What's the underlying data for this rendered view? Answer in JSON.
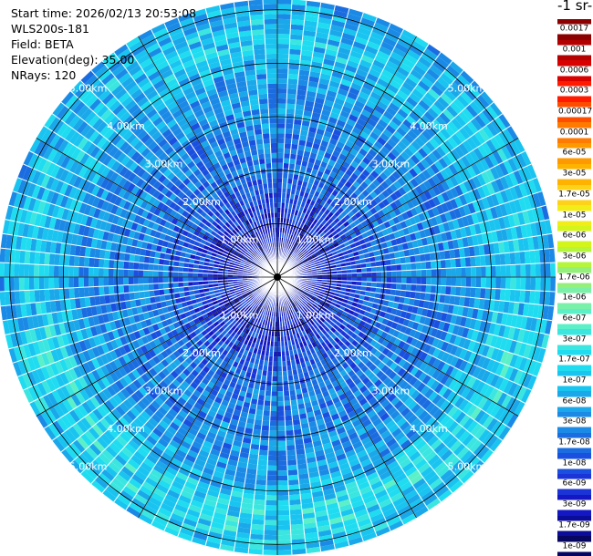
{
  "info": {
    "start_time": "Start time: 2026/02/13 20:53:08",
    "instrument": "WLS200s-181",
    "field": "Field: BETA",
    "elevation": "Elevation(deg): 35.00",
    "nrays": "NRays: 120"
  },
  "colorbar": {
    "unit_label": "-1 sr-",
    "labels": [
      "0.0017",
      "0.001",
      "0.0006",
      "0.0003",
      "0.00017",
      "0.0001",
      "6e-05",
      "3e-05",
      "1.7e-05",
      "1e-05",
      "6e-06",
      "3e-06",
      "1.7e-06",
      "1e-06",
      "6e-07",
      "3e-07",
      "1.7e-07",
      "1e-07",
      "6e-08",
      "3e-08",
      "1.7e-08",
      "1e-08",
      "6e-09",
      "3e-09",
      "1.7e-09",
      "1e-09"
    ],
    "colors": [
      "#8b0000",
      "#b30000",
      "#d90000",
      "#ff1a00",
      "#ff4d00",
      "#ff7a00",
      "#ff9900",
      "#ffb300",
      "#ffd21a",
      "#f2ec18",
      "#d4f51c",
      "#b5f53c",
      "#94f07a",
      "#7af0a8",
      "#5cf0c8",
      "#3ce6e0",
      "#1fdcf0",
      "#19c4f0",
      "#1aa8ea",
      "#1a8ae6",
      "#1a6ce0",
      "#1a50e0",
      "#1a34d8",
      "#1418c4",
      "#0c0c9a",
      "#060660"
    ]
  },
  "range_rings": {
    "labels": [
      "1.00km",
      "2.00km",
      "3.00km",
      "4.00km",
      "5.00km"
    ]
  },
  "chart_data": {
    "type": "heatmap",
    "projection": "polar-ppi",
    "field": "BETA",
    "elevation_deg": 35.0,
    "n_rays": 120,
    "range_rings_km": [
      1.0,
      2.0,
      3.0,
      4.0,
      5.0
    ],
    "max_range_km": 5.2,
    "colorbar_scale": "log",
    "profile": [
      {
        "range_km": 0.3,
        "beta": 4e-09
      },
      {
        "range_km": 1.0,
        "beta": 5e-09
      },
      {
        "range_km": 1.7,
        "beta": 1.5e-08
      },
      {
        "range_km": 2.3,
        "beta": 2.5e-08
      },
      {
        "range_km": 3.0,
        "beta": 3.5e-08
      },
      {
        "range_km": 3.7,
        "beta": 5e-08
      },
      {
        "range_km": 4.3,
        "beta": 1.2e-07
      },
      {
        "range_km": 4.8,
        "beta": 1e-07
      },
      {
        "range_km": 5.2,
        "beta": 6e-08
      }
    ]
  }
}
